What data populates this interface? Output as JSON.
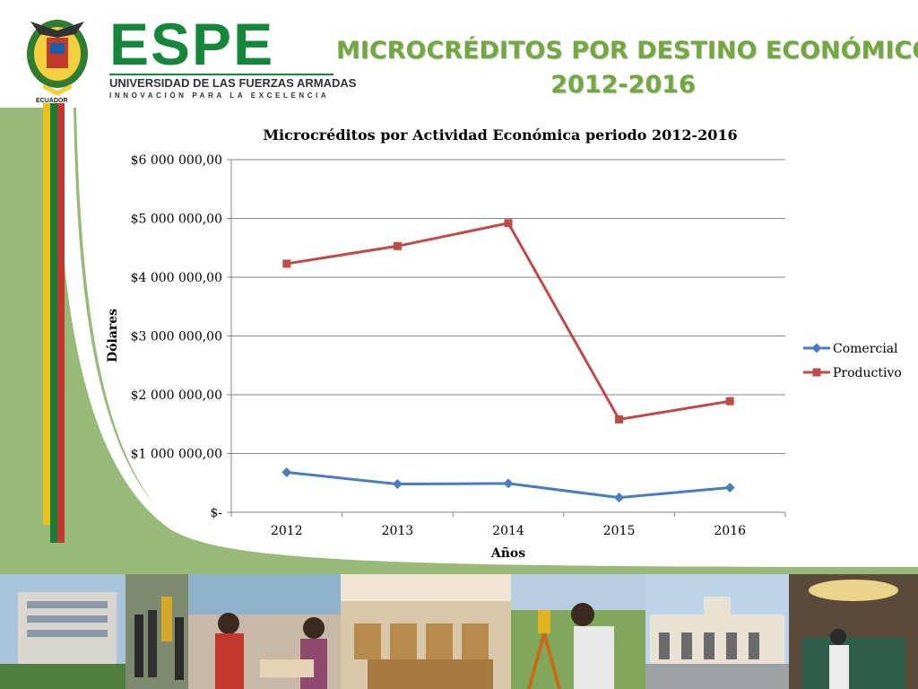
{
  "header": {
    "brand": "ESPE",
    "university": "UNIVERSIDAD DE LAS FUERZAS ARMADAS",
    "motto": "INNOVACIÓN PARA LA EXCELENCIA",
    "country": "ECUADOR"
  },
  "slide_title": {
    "line1": "MICROCRÉDITOS POR DESTINO ECONÓMICO",
    "line2": "2012-2016"
  },
  "colors": {
    "title_green": "#72a83f",
    "brand_green": "#16863a",
    "comercial": "#4a7ebb",
    "productivo": "#be4b48"
  },
  "chart_data": {
    "type": "line",
    "title": "Microcréditos por Actividad Económica periodo 2012-2016",
    "xlabel": "Años",
    "ylabel": "Dólares",
    "categories": [
      "2012",
      "2013",
      "2014",
      "2015",
      "2016"
    ],
    "ylim": [
      0,
      6000000
    ],
    "yticks": [
      {
        "value": 0,
        "label": "$-"
      },
      {
        "value": 1000000,
        "label": "$1 000 000,00"
      },
      {
        "value": 2000000,
        "label": "$2 000 000,00"
      },
      {
        "value": 3000000,
        "label": "$3 000 000,00"
      },
      {
        "value": 4000000,
        "label": "$4 000 000,00"
      },
      {
        "value": 5000000,
        "label": "$5 000 000,00"
      },
      {
        "value": 6000000,
        "label": "$6 000 000,00"
      }
    ],
    "grid": true,
    "legend": "right",
    "series": [
      {
        "name": "Comercial",
        "marker": "diamond",
        "color": "#4a7ebb",
        "values": [
          680000,
          480000,
          490000,
          250000,
          420000
        ]
      },
      {
        "name": "Productivo",
        "marker": "square",
        "color": "#be4b48",
        "values": [
          4230000,
          4530000,
          4920000,
          1580000,
          1890000
        ]
      }
    ]
  }
}
